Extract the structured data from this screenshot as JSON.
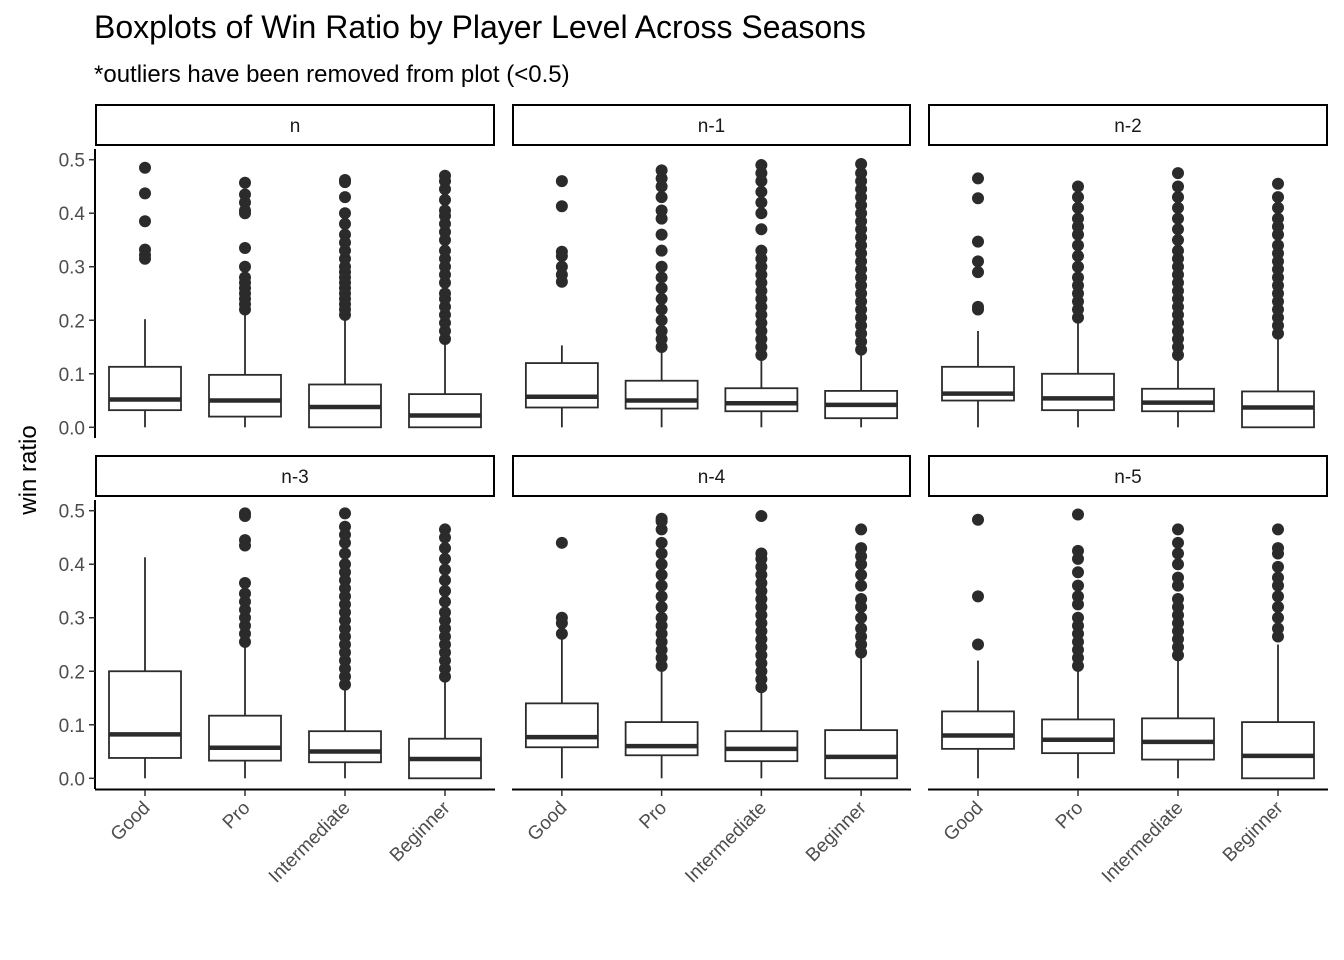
{
  "chart_data": {
    "type": "boxplot",
    "title": "Boxplots of Win Ratio by Player Level Across Seasons",
    "subtitle": "*outliers have been removed from plot (<0.5)",
    "ylabel": "win ratio",
    "xlabel": "",
    "ylim": [
      -0.02,
      0.52
    ],
    "yticks": [
      0.0,
      0.1,
      0.2,
      0.3,
      0.4,
      0.5
    ],
    "ytick_labels": [
      "0.0",
      "0.1",
      "0.2",
      "0.3",
      "0.4",
      "0.5"
    ],
    "categories": [
      "Good",
      "Pro",
      "Intermediate",
      "Beginner"
    ],
    "grid": false,
    "facets": [
      {
        "name": "n",
        "boxes": [
          {
            "category": "Good",
            "min": 0.0,
            "q1": 0.032,
            "median": 0.052,
            "q3": 0.113,
            "whisker_high": 0.202,
            "outliers": [
              0.315,
              0.322,
              0.332,
              0.385,
              0.437,
              0.485
            ]
          },
          {
            "category": "Pro",
            "min": 0.0,
            "q1": 0.02,
            "median": 0.05,
            "q3": 0.098,
            "whisker_high": 0.21,
            "outliers": [
              0.22,
              0.23,
              0.24,
              0.25,
              0.26,
              0.27,
              0.28,
              0.3,
              0.335,
              0.4,
              0.405,
              0.42,
              0.435,
              0.457
            ]
          },
          {
            "category": "Intermediate",
            "min": 0.0,
            "q1": 0.0,
            "median": 0.038,
            "q3": 0.08,
            "whisker_high": 0.2,
            "outliers": [
              0.21,
              0.22,
              0.23,
              0.24,
              0.25,
              0.26,
              0.27,
              0.28,
              0.29,
              0.3,
              0.315,
              0.33,
              0.345,
              0.36,
              0.38,
              0.4,
              0.43,
              0.458,
              0.462
            ]
          },
          {
            "category": "Beginner",
            "min": 0.0,
            "q1": 0.0,
            "median": 0.022,
            "q3": 0.062,
            "whisker_high": 0.155,
            "outliers": [
              0.165,
              0.18,
              0.195,
              0.21,
              0.225,
              0.24,
              0.25,
              0.27,
              0.285,
              0.3,
              0.315,
              0.33,
              0.35,
              0.365,
              0.38,
              0.395,
              0.405,
              0.425,
              0.445,
              0.46,
              0.47
            ]
          }
        ]
      },
      {
        "name": "n-1",
        "boxes": [
          {
            "category": "Good",
            "min": 0.0,
            "q1": 0.037,
            "median": 0.057,
            "q3": 0.12,
            "whisker_high": 0.153,
            "outliers": [
              0.272,
              0.285,
              0.3,
              0.32,
              0.328,
              0.413,
              0.46
            ]
          },
          {
            "category": "Pro",
            "min": 0.0,
            "q1": 0.035,
            "median": 0.05,
            "q3": 0.087,
            "whisker_high": 0.14,
            "outliers": [
              0.15,
              0.165,
              0.18,
              0.2,
              0.22,
              0.24,
              0.26,
              0.28,
              0.3,
              0.33,
              0.36,
              0.39,
              0.405,
              0.43,
              0.45,
              0.465,
              0.48
            ]
          },
          {
            "category": "Intermediate",
            "min": 0.0,
            "q1": 0.03,
            "median": 0.045,
            "q3": 0.073,
            "whisker_high": 0.128,
            "outliers": [
              0.135,
              0.15,
              0.165,
              0.18,
              0.195,
              0.21,
              0.225,
              0.24,
              0.255,
              0.27,
              0.285,
              0.3,
              0.315,
              0.33,
              0.37,
              0.4,
              0.42,
              0.44,
              0.46,
              0.475,
              0.49
            ]
          },
          {
            "category": "Beginner",
            "min": 0.0,
            "q1": 0.017,
            "median": 0.042,
            "q3": 0.068,
            "whisker_high": 0.14,
            "outliers": [
              0.145,
              0.16,
              0.175,
              0.19,
              0.205,
              0.22,
              0.235,
              0.25,
              0.265,
              0.28,
              0.295,
              0.31,
              0.325,
              0.34,
              0.355,
              0.37,
              0.385,
              0.4,
              0.415,
              0.43,
              0.445,
              0.46,
              0.475,
              0.492
            ]
          }
        ]
      },
      {
        "name": "n-2",
        "boxes": [
          {
            "category": "Good",
            "min": 0.0,
            "q1": 0.05,
            "median": 0.063,
            "q3": 0.113,
            "whisker_high": 0.18,
            "outliers": [
              0.22,
              0.225,
              0.29,
              0.31,
              0.347,
              0.428,
              0.465
            ]
          },
          {
            "category": "Pro",
            "min": 0.0,
            "q1": 0.032,
            "median": 0.054,
            "q3": 0.1,
            "whisker_high": 0.195,
            "outliers": [
              0.205,
              0.22,
              0.235,
              0.25,
              0.265,
              0.28,
              0.3,
              0.32,
              0.34,
              0.36,
              0.375,
              0.39,
              0.41,
              0.43,
              0.45
            ]
          },
          {
            "category": "Intermediate",
            "min": 0.0,
            "q1": 0.03,
            "median": 0.046,
            "q3": 0.072,
            "whisker_high": 0.128,
            "outliers": [
              0.135,
              0.15,
              0.165,
              0.18,
              0.195,
              0.21,
              0.225,
              0.24,
              0.255,
              0.27,
              0.285,
              0.3,
              0.315,
              0.33,
              0.35,
              0.37,
              0.39,
              0.41,
              0.43,
              0.45,
              0.475
            ]
          },
          {
            "category": "Beginner",
            "min": 0.0,
            "q1": 0.0,
            "median": 0.037,
            "q3": 0.067,
            "whisker_high": 0.165,
            "outliers": [
              0.175,
              0.19,
              0.205,
              0.22,
              0.235,
              0.25,
              0.265,
              0.28,
              0.295,
              0.31,
              0.325,
              0.34,
              0.36,
              0.375,
              0.39,
              0.41,
              0.43,
              0.455
            ]
          }
        ]
      },
      {
        "name": "n-3",
        "boxes": [
          {
            "category": "Good",
            "min": 0.0,
            "q1": 0.038,
            "median": 0.082,
            "q3": 0.2,
            "whisker_high": 0.413,
            "outliers": []
          },
          {
            "category": "Pro",
            "min": 0.0,
            "q1": 0.033,
            "median": 0.057,
            "q3": 0.117,
            "whisker_high": 0.245,
            "outliers": [
              0.255,
              0.27,
              0.285,
              0.3,
              0.315,
              0.33,
              0.345,
              0.365,
              0.435,
              0.445,
              0.49,
              0.495
            ]
          },
          {
            "category": "Intermediate",
            "min": 0.0,
            "q1": 0.03,
            "median": 0.05,
            "q3": 0.088,
            "whisker_high": 0.168,
            "outliers": [
              0.175,
              0.19,
              0.205,
              0.22,
              0.235,
              0.25,
              0.265,
              0.28,
              0.295,
              0.31,
              0.325,
              0.34,
              0.355,
              0.37,
              0.385,
              0.4,
              0.42,
              0.44,
              0.455,
              0.47,
              0.495
            ]
          },
          {
            "category": "Beginner",
            "min": 0.0,
            "q1": 0.0,
            "median": 0.036,
            "q3": 0.074,
            "whisker_high": 0.18,
            "outliers": [
              0.19,
              0.205,
              0.22,
              0.235,
              0.25,
              0.265,
              0.28,
              0.295,
              0.31,
              0.33,
              0.35,
              0.37,
              0.39,
              0.41,
              0.43,
              0.45,
              0.465
            ]
          }
        ]
      },
      {
        "name": "n-4",
        "boxes": [
          {
            "category": "Good",
            "min": 0.0,
            "q1": 0.058,
            "median": 0.077,
            "q3": 0.14,
            "whisker_high": 0.26,
            "outliers": [
              0.27,
              0.29,
              0.3,
              0.44
            ]
          },
          {
            "category": "Pro",
            "min": 0.0,
            "q1": 0.043,
            "median": 0.06,
            "q3": 0.105,
            "whisker_high": 0.2,
            "outliers": [
              0.21,
              0.225,
              0.24,
              0.255,
              0.27,
              0.285,
              0.3,
              0.32,
              0.34,
              0.36,
              0.38,
              0.4,
              0.42,
              0.44,
              0.465,
              0.48,
              0.485
            ]
          },
          {
            "category": "Intermediate",
            "min": 0.0,
            "q1": 0.032,
            "median": 0.055,
            "q3": 0.088,
            "whisker_high": 0.165,
            "outliers": [
              0.17,
              0.185,
              0.2,
              0.215,
              0.23,
              0.245,
              0.26,
              0.275,
              0.29,
              0.305,
              0.32,
              0.335,
              0.35,
              0.365,
              0.38,
              0.395,
              0.41,
              0.42,
              0.49
            ]
          },
          {
            "category": "Beginner",
            "min": 0.0,
            "q1": 0.0,
            "median": 0.04,
            "q3": 0.09,
            "whisker_high": 0.225,
            "outliers": [
              0.235,
              0.25,
              0.265,
              0.28,
              0.3,
              0.32,
              0.335,
              0.36,
              0.38,
              0.4,
              0.415,
              0.43,
              0.465
            ]
          }
        ]
      },
      {
        "name": "n-5",
        "boxes": [
          {
            "category": "Good",
            "min": 0.0,
            "q1": 0.055,
            "median": 0.08,
            "q3": 0.125,
            "whisker_high": 0.22,
            "outliers": [
              0.25,
              0.34,
              0.483
            ]
          },
          {
            "category": "Pro",
            "min": 0.0,
            "q1": 0.047,
            "median": 0.072,
            "q3": 0.11,
            "whisker_high": 0.2,
            "outliers": [
              0.21,
              0.225,
              0.24,
              0.255,
              0.27,
              0.285,
              0.3,
              0.325,
              0.34,
              0.36,
              0.385,
              0.41,
              0.425,
              0.493
            ]
          },
          {
            "category": "Intermediate",
            "min": 0.0,
            "q1": 0.035,
            "median": 0.068,
            "q3": 0.112,
            "whisker_high": 0.225,
            "outliers": [
              0.23,
              0.245,
              0.26,
              0.275,
              0.29,
              0.305,
              0.32,
              0.335,
              0.36,
              0.375,
              0.4,
              0.42,
              0.44,
              0.465
            ]
          },
          {
            "category": "Beginner",
            "min": 0.0,
            "q1": 0.0,
            "median": 0.042,
            "q3": 0.105,
            "whisker_high": 0.25,
            "outliers": [
              0.265,
              0.28,
              0.3,
              0.32,
              0.34,
              0.36,
              0.375,
              0.395,
              0.42,
              0.43,
              0.465
            ]
          }
        ]
      }
    ]
  }
}
